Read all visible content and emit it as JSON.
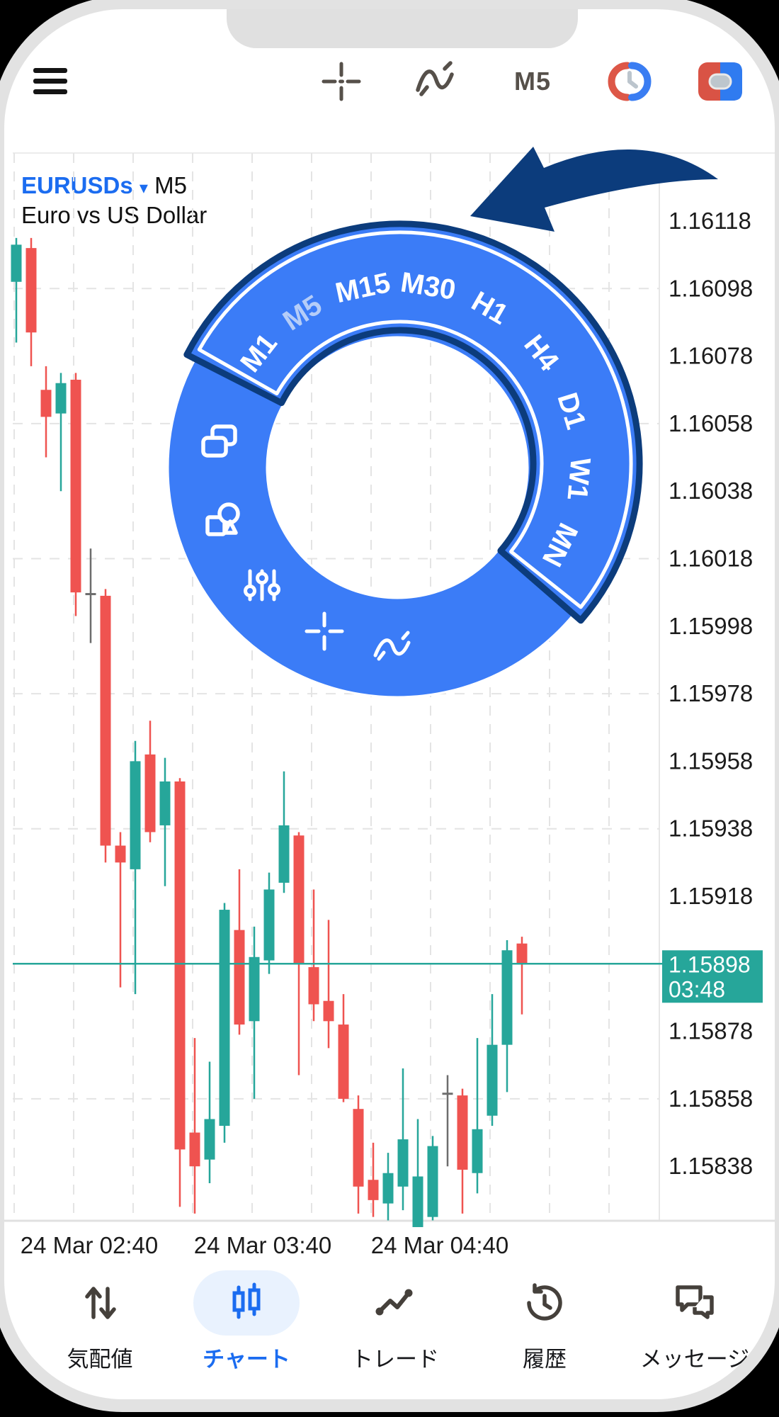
{
  "toolbar": {
    "timeframe_label": "M5"
  },
  "symbol_header": {
    "symbol": "EURUSDs",
    "dropdown_arrow": "▾",
    "timeframe": "M5",
    "description": "Euro vs US Dollar"
  },
  "chart_data": {
    "type": "candlestick",
    "symbol": "EURUSDs",
    "timeframe": "M5",
    "y_ticks": [
      "1.16118",
      "1.16098",
      "1.16078",
      "1.16058",
      "1.16038",
      "1.16018",
      "1.15998",
      "1.15978",
      "1.15958",
      "1.15938",
      "1.15918",
      "1.15878",
      "1.15858",
      "1.15838"
    ],
    "x_ticks": [
      "24 Mar 02:40",
      "24 Mar 03:40",
      "24 Mar 04:40"
    ],
    "current_price": "1.15898",
    "current_price_time": "03:48",
    "grid_prices": [
      1.16098,
      1.16058,
      1.16018,
      1.15978,
      1.15938,
      1.15898,
      1.15858
    ],
    "candles": [
      [
        1.161,
        1.16113,
        1.16082,
        1.16111
      ],
      [
        1.1611,
        1.16113,
        1.16075,
        1.16085
      ],
      [
        1.16068,
        1.16075,
        1.16048,
        1.1606
      ],
      [
        1.16061,
        1.16073,
        1.16038,
        1.1607
      ],
      [
        1.16071,
        1.16073,
        1.16001,
        1.16008
      ],
      [
        1.16008,
        1.16021,
        1.15993,
        1.16007
      ],
      [
        1.16007,
        1.16009,
        1.15928,
        1.15933
      ],
      [
        1.15933,
        1.15937,
        1.15891,
        1.15928
      ],
      [
        1.15926,
        1.15964,
        1.15889,
        1.15958
      ],
      [
        1.1596,
        1.1597,
        1.15934,
        1.15937
      ],
      [
        1.15939,
        1.15959,
        1.15921,
        1.15952
      ],
      [
        1.15952,
        1.15953,
        1.15826,
        1.15843
      ],
      [
        1.15848,
        1.15876,
        1.15824,
        1.15838
      ],
      [
        1.1584,
        1.15869,
        1.15833,
        1.15852
      ],
      [
        1.1585,
        1.15916,
        1.15845,
        1.15914
      ],
      [
        1.15908,
        1.15926,
        1.15877,
        1.1588
      ],
      [
        1.15881,
        1.15909,
        1.15858,
        1.159
      ],
      [
        1.15899,
        1.15925,
        1.15895,
        1.1592
      ],
      [
        1.15922,
        1.15955,
        1.15919,
        1.15939
      ],
      [
        1.15936,
        1.15937,
        1.15865,
        1.15898
      ],
      [
        1.15897,
        1.1592,
        1.15881,
        1.15886
      ],
      [
        1.15887,
        1.15911,
        1.15873,
        1.15881
      ],
      [
        1.1588,
        1.15889,
        1.15857,
        1.15858
      ],
      [
        1.15855,
        1.15859,
        1.15824,
        1.15832
      ],
      [
        1.15834,
        1.15845,
        1.15823,
        1.15828
      ],
      [
        1.15827,
        1.15842,
        1.15822,
        1.15836
      ],
      [
        1.15832,
        1.15867,
        1.15825,
        1.15846
      ],
      [
        1.1582,
        1.15852,
        1.15822,
        1.15835
      ],
      [
        1.15823,
        1.15847,
        1.15822,
        1.15844
      ],
      [
        1.1586,
        1.15865,
        1.15838,
        1.15859
      ],
      [
        1.15859,
        1.15861,
        1.15824,
        1.15837
      ],
      [
        1.15836,
        1.15876,
        1.1583,
        1.15849
      ],
      [
        1.15853,
        1.15889,
        1.1585,
        1.15874
      ],
      [
        1.15874,
        1.15905,
        1.1586,
        1.15902
      ],
      [
        1.15904,
        1.15906,
        1.15883,
        1.15898
      ]
    ],
    "doji_indices": [
      5,
      29
    ],
    "colors": {
      "up": "#26a69a",
      "down": "#ef5350",
      "doji": "#6d6d6d",
      "price_line": "#26a69a",
      "badge": "#26a69a",
      "grid": "#e4e4e4"
    }
  },
  "wheel": {
    "timeframes": [
      "M1",
      "M5",
      "M15",
      "M30",
      "H1",
      "H4",
      "D1",
      "W1",
      "MN"
    ],
    "selected": "M5",
    "tools": [
      "windows",
      "objects",
      "settings",
      "crosshair",
      "indicators"
    ],
    "colors": {
      "ring": "#3b7cf7",
      "outline": "#0c3c7c",
      "label": "#ffffff",
      "selected_label": "#b5cdf8"
    }
  },
  "bottom_nav": {
    "items": [
      {
        "label": "気配値",
        "icon": "quotes-arrows-icon"
      },
      {
        "label": "チャート",
        "icon": "candlestick-icon"
      },
      {
        "label": "トレード",
        "icon": "trade-line-icon"
      },
      {
        "label": "履歴",
        "icon": "history-clock-icon"
      },
      {
        "label": "メッセージ",
        "icon": "messages-icon"
      }
    ],
    "active": "チャート",
    "active_color": "#1b6cf0"
  }
}
